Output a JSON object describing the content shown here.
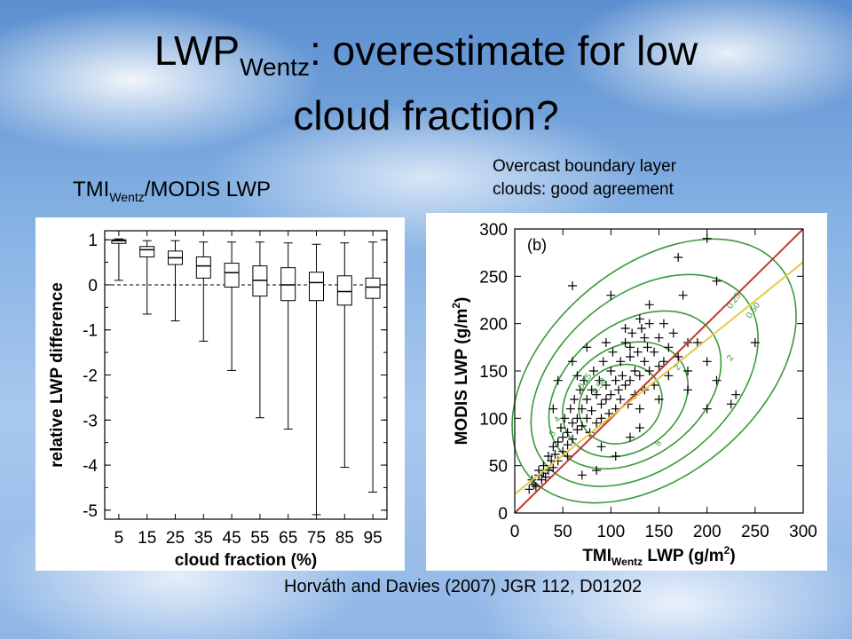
{
  "title": {
    "main": "LWP",
    "sub": "Wentz",
    "rest": ": overestimate for low",
    "line2": "cloud fraction?"
  },
  "left_label": {
    "pre": "TMI",
    "sub": "Wentz",
    "post": "/MODIS LWP"
  },
  "right_label": {
    "line1": "Overcast boundary layer",
    "line2": "clouds: good agreement"
  },
  "citation": "Horváth and Davies (2007) JGR 112, D01202",
  "chart_data": [
    {
      "type": "box",
      "xlabel": "cloud fraction (%)",
      "ylabel": "relative LWP difference",
      "categories": [
        "5",
        "15",
        "25",
        "35",
        "45",
        "55",
        "65",
        "75",
        "85",
        "95"
      ],
      "ylim": [
        -5.2,
        1.2
      ],
      "yticks": [
        "1",
        "0",
        "-1",
        "-2",
        "-3",
        "-4",
        "-5"
      ],
      "reference_line": 0,
      "boxes": [
        {
          "min": 0.1,
          "q1": 0.92,
          "median": 0.98,
          "q3": 1.0,
          "max": 1.02
        },
        {
          "min": -0.65,
          "q1": 0.62,
          "median": 0.78,
          "q3": 0.85,
          "max": 0.98
        },
        {
          "min": -0.8,
          "q1": 0.45,
          "median": 0.6,
          "q3": 0.75,
          "max": 0.98
        },
        {
          "min": -1.25,
          "q1": 0.15,
          "median": 0.42,
          "q3": 0.62,
          "max": 0.95
        },
        {
          "min": -1.9,
          "q1": -0.05,
          "median": 0.27,
          "q3": 0.48,
          "max": 0.95
        },
        {
          "min": -2.95,
          "q1": -0.25,
          "median": 0.1,
          "q3": 0.42,
          "max": 0.95
        },
        {
          "min": -3.2,
          "q1": -0.35,
          "median": 0.0,
          "q3": 0.38,
          "max": 0.93
        },
        {
          "min": -5.1,
          "q1": -0.35,
          "median": 0.05,
          "q3": 0.28,
          "max": 0.9
        },
        {
          "min": -4.05,
          "q1": -0.45,
          "median": -0.15,
          "q3": 0.2,
          "max": 0.93
        },
        {
          "min": -4.6,
          "q1": -0.3,
          "median": -0.05,
          "q3": 0.15,
          "max": 0.95
        }
      ]
    },
    {
      "type": "scatter",
      "panel_label": "(b)",
      "xlabel": {
        "pre": "TMI",
        "sub": "Wentz",
        "post": " LWP (g/m",
        "sup": "2",
        "end": ")"
      },
      "ylabel": {
        "pre": "MODIS LWP (g/m",
        "sup": "2",
        "end": ")"
      },
      "xlim": [
        0,
        300
      ],
      "ylim": [
        0,
        300
      ],
      "xticks": [
        0,
        50,
        100,
        150,
        200,
        250,
        300
      ],
      "yticks": [
        0,
        50,
        100,
        150,
        200,
        250,
        300
      ],
      "lines": [
        {
          "name": "1:1",
          "color": "#c0392b",
          "points": [
            [
              0,
              0
            ],
            [
              300,
              300
            ]
          ]
        },
        {
          "name": "fit",
          "color": "#e8c94a",
          "points": [
            [
              0,
              20
            ],
            [
              300,
              265
            ]
          ]
        }
      ],
      "contour_color": "#3a9a3a",
      "contour_labels": [
        "0.25",
        "0.50",
        "0.25",
        "0.50",
        "2",
        "4",
        "8",
        "8",
        "2"
      ],
      "points": [
        [
          15,
          25
        ],
        [
          18,
          35
        ],
        [
          20,
          30
        ],
        [
          22,
          28
        ],
        [
          25,
          40
        ],
        [
          25,
          45
        ],
        [
          28,
          35
        ],
        [
          30,
          50
        ],
        [
          30,
          42
        ],
        [
          32,
          38
        ],
        [
          35,
          45
        ],
        [
          35,
          60
        ],
        [
          38,
          55
        ],
        [
          40,
          70
        ],
        [
          40,
          48
        ],
        [
          42,
          62
        ],
        [
          45,
          75
        ],
        [
          45,
          55
        ],
        [
          48,
          90
        ],
        [
          50,
          80
        ],
        [
          50,
          65
        ],
        [
          52,
          100
        ],
        [
          55,
          85
        ],
        [
          55,
          72
        ],
        [
          58,
          110
        ],
        [
          60,
          95
        ],
        [
          60,
          78
        ],
        [
          62,
          120
        ],
        [
          65,
          100
        ],
        [
          65,
          88
        ],
        [
          68,
          130
        ],
        [
          70,
          110
        ],
        [
          70,
          92
        ],
        [
          72,
          140
        ],
        [
          75,
          120
        ],
        [
          75,
          100
        ],
        [
          78,
          85
        ],
        [
          80,
          130
        ],
        [
          80,
          108
        ],
        [
          82,
          150
        ],
        [
          85,
          125
        ],
        [
          85,
          95
        ],
        [
          88,
          140
        ],
        [
          90,
          115
        ],
        [
          90,
          100
        ],
        [
          92,
          160
        ],
        [
          95,
          135
        ],
        [
          95,
          120
        ],
        [
          98,
          105
        ],
        [
          100,
          150
        ],
        [
          100,
          125
        ],
        [
          102,
          170
        ],
        [
          105,
          140
        ],
        [
          105,
          110
        ],
        [
          108,
          130
        ],
        [
          110,
          160
        ],
        [
          110,
          120
        ],
        [
          112,
          145
        ],
        [
          115,
          180
        ],
        [
          115,
          135
        ],
        [
          118,
          115
        ],
        [
          120,
          165
        ],
        [
          120,
          140
        ],
        [
          122,
          190
        ],
        [
          125,
          150
        ],
        [
          125,
          125
        ],
        [
          128,
          170
        ],
        [
          130,
          145
        ],
        [
          130,
          110
        ],
        [
          132,
          195
        ],
        [
          135,
          160
        ],
        [
          135,
          130
        ],
        [
          138,
          175
        ],
        [
          140,
          150
        ],
        [
          140,
          200
        ],
        [
          145,
          170
        ],
        [
          145,
          135
        ],
        [
          150,
          185
        ],
        [
          150,
          155
        ],
        [
          155,
          160
        ],
        [
          155,
          200
        ],
        [
          160,
          175
        ],
        [
          160,
          145
        ],
        [
          165,
          190
        ],
        [
          170,
          165
        ],
        [
          175,
          230
        ],
        [
          180,
          150
        ],
        [
          190,
          180
        ],
        [
          200,
          160
        ],
        [
          210,
          140
        ],
        [
          225,
          115
        ],
        [
          230,
          125
        ],
        [
          60,
          240
        ],
        [
          100,
          230
        ],
        [
          120,
          175
        ],
        [
          130,
          205
        ],
        [
          140,
          220
        ],
        [
          170,
          270
        ],
        [
          180,
          180
        ],
        [
          40,
          110
        ],
        [
          55,
          60
        ],
        [
          70,
          40
        ],
        [
          85,
          45
        ],
        [
          105,
          60
        ],
        [
          120,
          80
        ],
        [
          150,
          120
        ],
        [
          180,
          130
        ],
        [
          200,
          110
        ],
        [
          45,
          140
        ],
        [
          60,
          160
        ],
        [
          75,
          175
        ],
        [
          95,
          180
        ],
        [
          115,
          195
        ],
        [
          135,
          185
        ],
        [
          65,
          145
        ],
        [
          200,
          290
        ],
        [
          210,
          245
        ],
        [
          250,
          180
        ],
        [
          90,
          70
        ],
        [
          130,
          90
        ]
      ]
    }
  ]
}
